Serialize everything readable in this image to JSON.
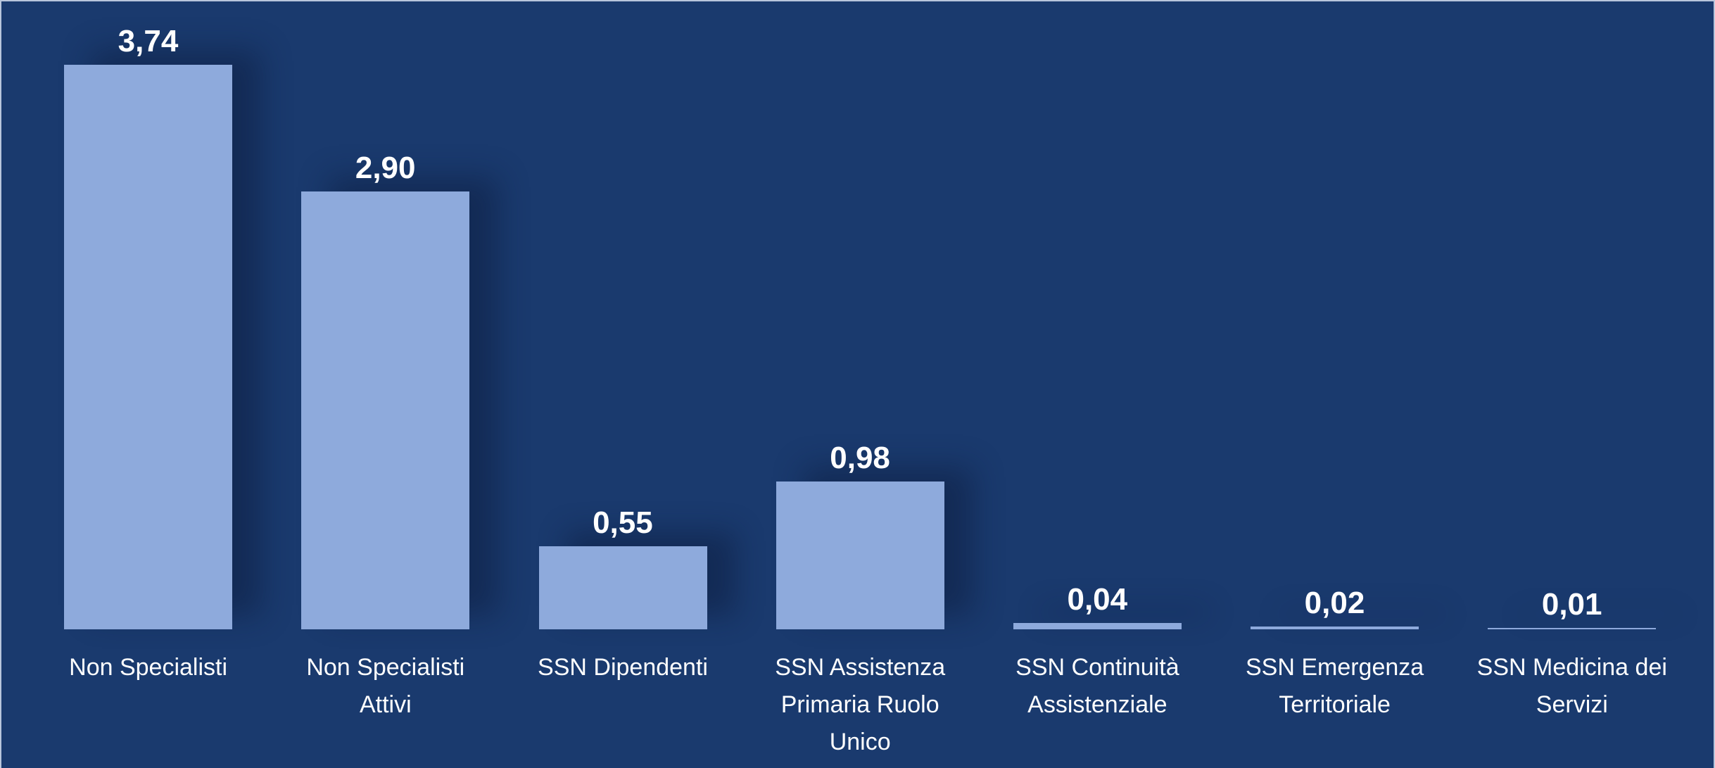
{
  "chart_data": {
    "type": "bar",
    "categories": [
      "Non Specialisti",
      "Non Specialisti Attivi",
      "SSN Dipendenti",
      "SSN Assistenza Primaria Ruolo Unico",
      "SSN Continuità Assistenziale",
      "SSN Emergenza Territoriale",
      "SSN Medicina dei Servizi"
    ],
    "values": [
      3.74,
      2.9,
      0.55,
      0.98,
      0.04,
      0.02,
      0.01
    ],
    "value_labels": [
      "3,74",
      "2,90",
      "0,55",
      "0,98",
      "0,04",
      "0,02",
      "0,01"
    ],
    "color": "#8eaadc",
    "ylim": [
      0,
      4
    ]
  }
}
